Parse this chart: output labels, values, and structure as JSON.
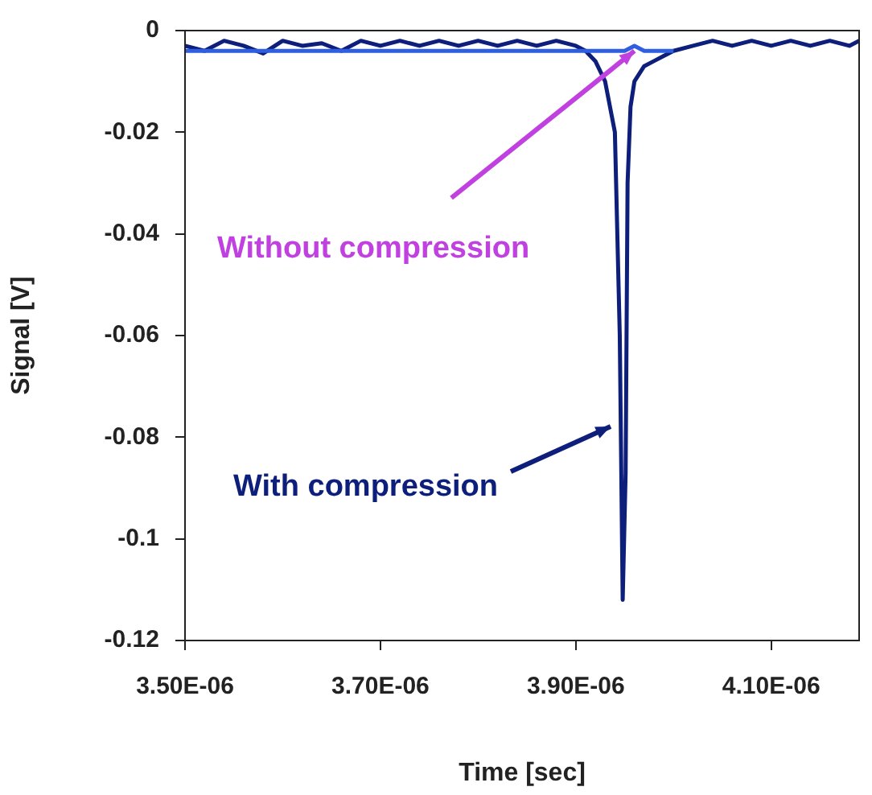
{
  "chart_data": {
    "type": "line",
    "xlabel": "Time [sec]",
    "ylabel": "Signal [V]",
    "xlim": [
      3.5e-06,
      4.19e-06
    ],
    "xticks": [
      {
        "value": 3.5e-06,
        "label": "3.50E-06"
      },
      {
        "value": 3.7e-06,
        "label": "3.70E-06"
      },
      {
        "value": 3.9e-06,
        "label": "3.90E-06"
      },
      {
        "value": 4.1e-06,
        "label": "4.10E-06"
      }
    ],
    "ylim": [
      -0.12,
      0
    ],
    "yticks": [
      -0.12,
      -0.1,
      -0.08,
      -0.06,
      -0.04,
      -0.02,
      0
    ],
    "grid": false,
    "legend": false,
    "marker": "none",
    "line_style": "solid",
    "series": [
      {
        "color": "#2f5fe0",
        "x": [
          3.5e-06,
          3.6e-06,
          3.7e-06,
          3.8e-06,
          3.9e-06,
          3.95e-06,
          3.96e-06,
          3.97e-06,
          4e-06
        ],
        "values": [
          -0.004,
          -0.004,
          -0.004,
          -0.004,
          -0.004,
          -0.004,
          -0.003,
          -0.004,
          -0.004
        ]
      },
      {
        "color": "#0d1f7a",
        "x": [
          3.5e-06,
          3.52e-06,
          3.54e-06,
          3.56e-06,
          3.58e-06,
          3.6e-06,
          3.62e-06,
          3.64e-06,
          3.66e-06,
          3.68e-06,
          3.7e-06,
          3.72e-06,
          3.74e-06,
          3.76e-06,
          3.78e-06,
          3.8e-06,
          3.82e-06,
          3.84e-06,
          3.86e-06,
          3.88e-06,
          3.9e-06,
          3.91e-06,
          3.92e-06,
          3.93e-06,
          3.94e-06,
          3.945e-06,
          3.948e-06,
          3.951e-06,
          3.953e-06,
          3.956e-06,
          3.96e-06,
          3.97e-06,
          3.98e-06,
          3.99e-06,
          4e-06,
          4.02e-06,
          4.04e-06,
          4.06e-06,
          4.08e-06,
          4.1e-06,
          4.12e-06,
          4.14e-06,
          4.16e-06,
          4.18e-06,
          4.19e-06
        ],
        "values": [
          -0.003,
          -0.004,
          -0.002,
          -0.003,
          -0.0045,
          -0.002,
          -0.003,
          -0.0025,
          -0.004,
          -0.002,
          -0.003,
          -0.002,
          -0.003,
          -0.002,
          -0.003,
          -0.002,
          -0.003,
          -0.002,
          -0.003,
          -0.002,
          -0.003,
          -0.004,
          -0.006,
          -0.01,
          -0.02,
          -0.06,
          -0.112,
          -0.087,
          -0.03,
          -0.015,
          -0.01,
          -0.007,
          -0.006,
          -0.005,
          -0.004,
          -0.003,
          -0.002,
          -0.003,
          -0.002,
          -0.003,
          -0.002,
          -0.003,
          -0.002,
          -0.003,
          -0.002
        ]
      }
    ],
    "annotations": [
      {
        "text": "Without compression",
        "x": 3.96e-06,
        "y": -0.004
      },
      "With compression"
    ]
  }
}
